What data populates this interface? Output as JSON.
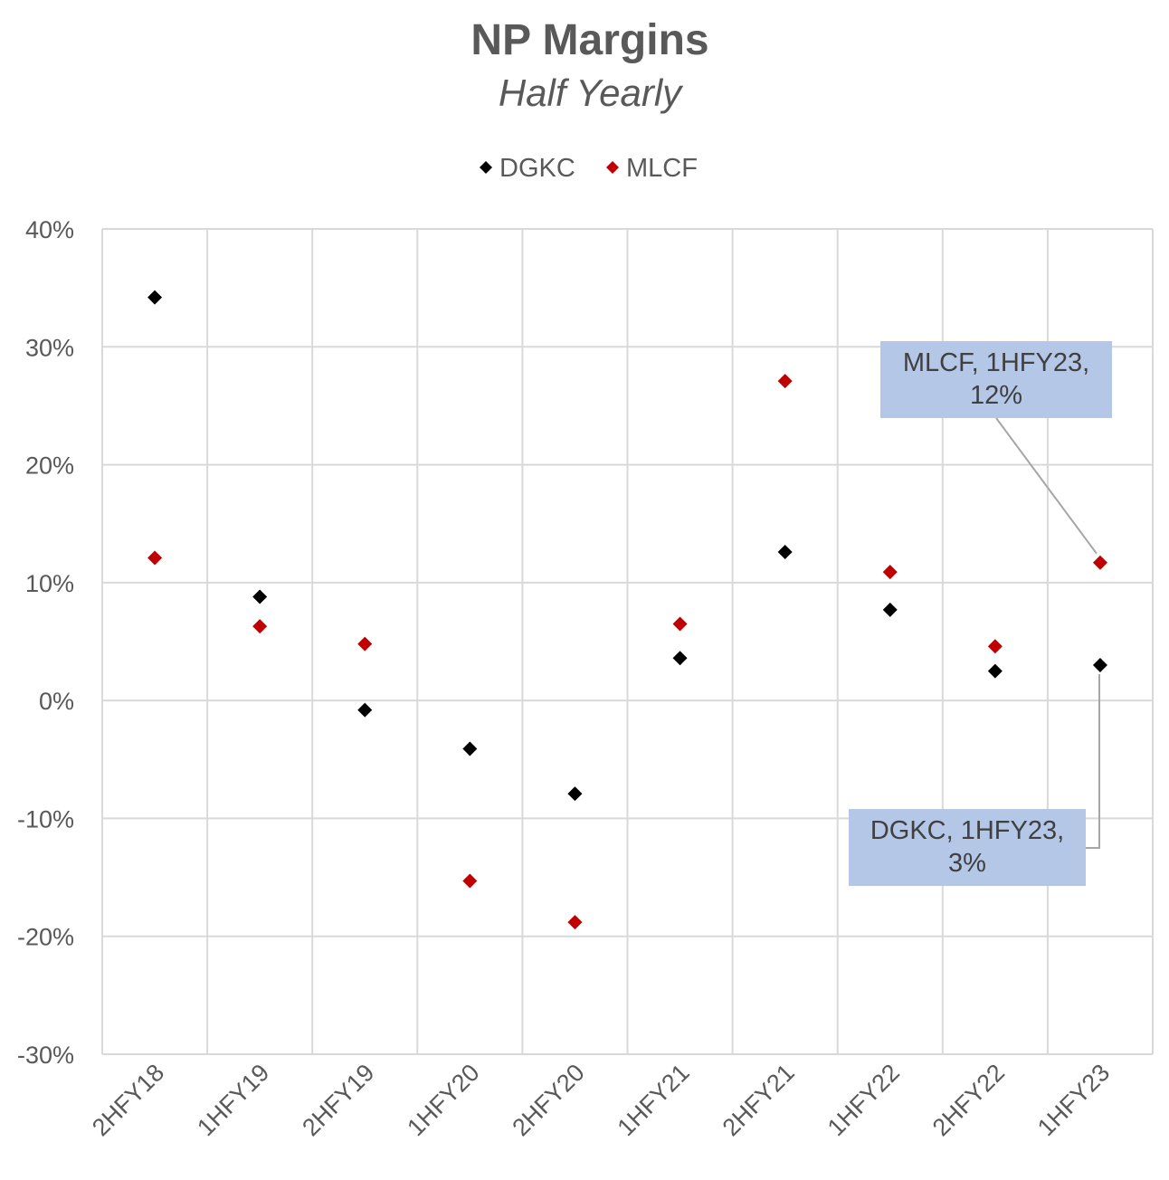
{
  "chart_data": {
    "type": "scatter",
    "title": "NP Margins",
    "subtitle": "Half Yearly",
    "categories": [
      "2HFY18",
      "1HFY19",
      "2HFY19",
      "1HFY20",
      "2HFY20",
      "1HFY21",
      "2HFY21",
      "1HFY22",
      "2HFY22",
      "1HFY23"
    ],
    "series": [
      {
        "name": "DGKC",
        "color": "#000000",
        "values": [
          34.2,
          8.8,
          -0.8,
          -4.1,
          -7.9,
          3.6,
          12.6,
          7.7,
          2.5,
          3.0
        ]
      },
      {
        "name": "MLCF",
        "color": "#c00000",
        "values": [
          12.1,
          6.3,
          4.8,
          -15.3,
          -18.8,
          6.5,
          27.1,
          10.9,
          4.6,
          11.7
        ]
      }
    ],
    "ylim": [
      -30,
      40
    ],
    "yticks": [
      -30,
      -20,
      -10,
      0,
      10,
      20,
      30,
      40
    ],
    "ytick_labels": [
      "-30%",
      "-20%",
      "-10%",
      "0%",
      "10%",
      "20%",
      "30%",
      "40%"
    ],
    "grid": true,
    "legend_position": "top",
    "annotations": [
      {
        "series": "MLCF",
        "category": "1HFY23",
        "line1": "MLCF, 1HFY23,",
        "line2": "12%"
      },
      {
        "series": "DGKC",
        "category": "1HFY23",
        "line1": "DGKC, 1HFY23,",
        "line2": "3%"
      }
    ],
    "callout_fill": "#b4c7e7"
  }
}
